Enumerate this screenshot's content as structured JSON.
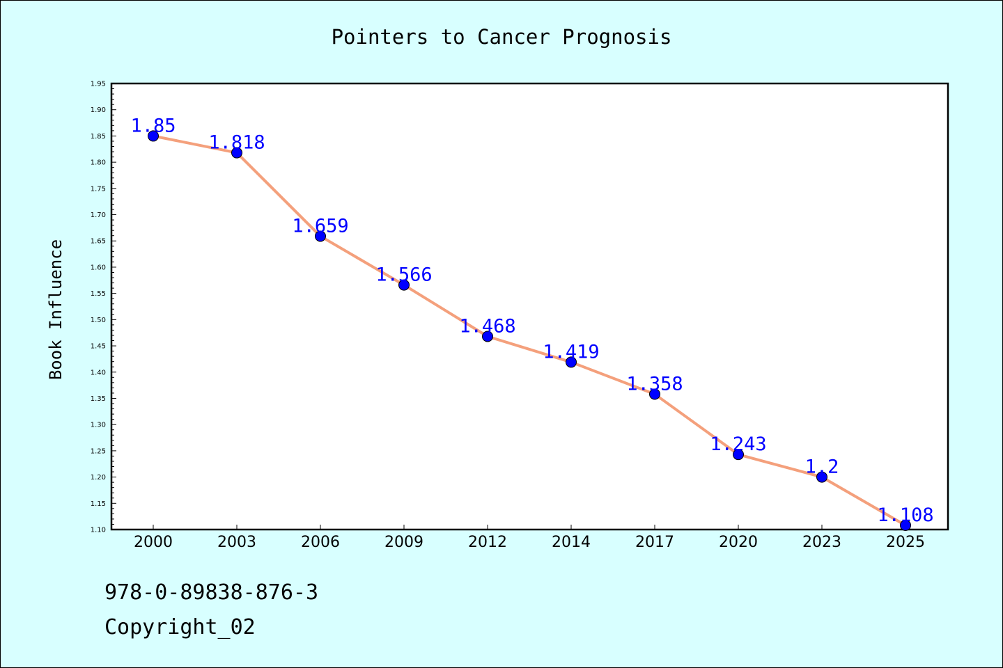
{
  "footer": {
    "isbn": "978-0-89838-876-3",
    "copyright": "Copyright_02"
  },
  "colors": {
    "background": "#d8ffff",
    "line": "#f4a07c",
    "marker": "#0000ff",
    "label": "#0000ff"
  },
  "chart_data": {
    "type": "line",
    "title": "Pointers to Cancer Prognosis",
    "xlabel": "",
    "ylabel": "Book Influence",
    "categories": [
      "2000",
      "2003",
      "2006",
      "2009",
      "2012",
      "2014",
      "2017",
      "2020",
      "2023",
      "2025"
    ],
    "values": [
      1.85,
      1.818,
      1.659,
      1.566,
      1.468,
      1.419,
      1.358,
      1.243,
      1.2,
      1.108
    ],
    "data_labels": [
      "1.85",
      "1.818",
      "1.659",
      "1.566",
      "1.468",
      "1.419",
      "1.358",
      "1.243",
      "1.2",
      "1.108"
    ],
    "ylim": [
      1.1,
      1.95
    ],
    "yticks": [
      "1.10",
      "1.15",
      "1.20",
      "1.25",
      "1.30",
      "1.35",
      "1.40",
      "1.45",
      "1.50",
      "1.55",
      "1.60",
      "1.65",
      "1.70",
      "1.75",
      "1.80",
      "1.85",
      "1.90",
      "1.95"
    ],
    "grid": false,
    "legend": "none"
  }
}
